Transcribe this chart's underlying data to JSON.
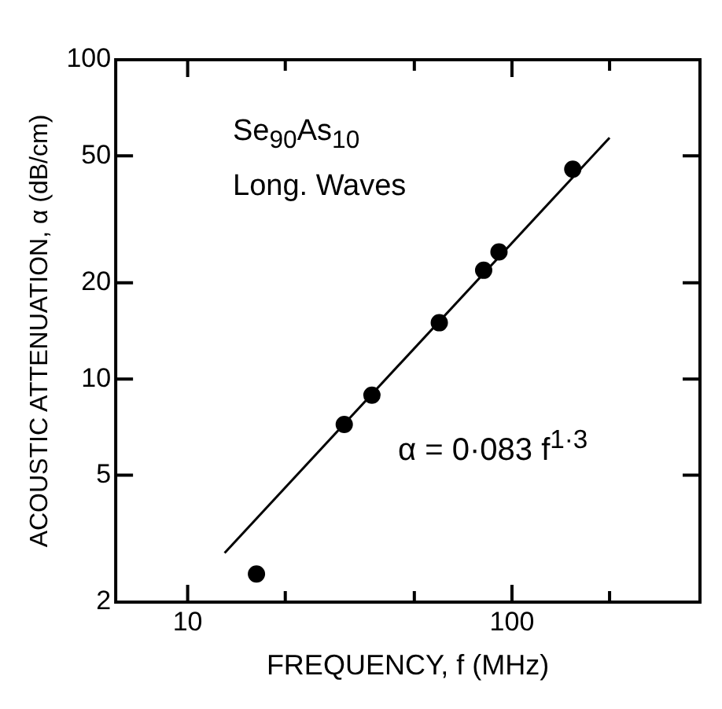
{
  "chart_data": {
    "type": "scatter",
    "xlabel": "FREQUENCY, f (MHz)",
    "ylabel": "ACOUSTIC ATTENUATION, α (dB/cm)",
    "annotations": [
      "Se$_{90}$As$_{10}$",
      "Long. Waves",
      "α = 0·083 f$^{1·3}$"
    ],
    "log": "xy",
    "grid": false,
    "legend": false,
    "marker": "circle",
    "xlim": [
      6,
      380
    ],
    "ylim": [
      2,
      100
    ],
    "xticks": [
      10,
      {
        "value": 20,
        "label": null
      },
      {
        "value": 50,
        "label": null
      },
      100,
      {
        "value": 200,
        "label": null
      }
    ],
    "yticks": [
      2,
      5,
      10,
      20,
      50,
      100
    ],
    "series": [
      {
        "type": "scatter",
        "color": "#000000",
        "x": [
          16.3,
          30.4,
          37,
          59.7,
          81.8,
          91.2,
          154
        ],
        "values": [
          2.45,
          7.2,
          8.9,
          15,
          21.9,
          25,
          45.4
        ]
      },
      {
        "type": "line",
        "color": "#000000",
        "x": [
          13,
          200
        ],
        "values": [
          2.85,
          57
        ],
        "marker": "none",
        "line_style": "solid"
      }
    ]
  }
}
